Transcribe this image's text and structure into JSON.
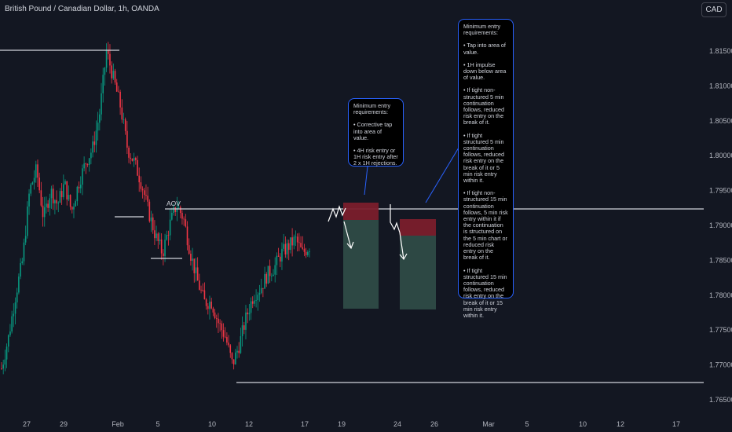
{
  "header": {
    "title": "British Pound / Canadian Dollar, 1h, OANDA",
    "currency_button": "CAD"
  },
  "chart_data": {
    "type": "candlestick",
    "title": "British Pound / Canadian Dollar, 1h, OANDA",
    "y_ticks": [
      "1.81500",
      "1.81000",
      "1.80500",
      "1.80000",
      "1.79500",
      "1.79000",
      "1.78500",
      "1.78000",
      "1.77500",
      "1.77000",
      "1.76500"
    ],
    "x_ticks": [
      "27",
      "29",
      "Feb",
      "5",
      "10",
      "12",
      "17",
      "19",
      "24",
      "26",
      "Mar",
      "5",
      "10",
      "12",
      "17"
    ],
    "annotation": "AOV",
    "price_path": [
      1.7695,
      1.774,
      1.78,
      1.785,
      1.795,
      1.798,
      1.791,
      1.795,
      1.793,
      1.796,
      1.792,
      1.796,
      1.799,
      1.801,
      1.806,
      1.815,
      1.811,
      1.807,
      1.801,
      1.799,
      1.796,
      1.792,
      1.7885,
      1.786,
      1.79,
      1.793,
      1.791,
      1.786,
      1.782,
      1.779,
      1.779,
      1.776,
      1.774,
      1.77,
      1.773,
      1.777,
      1.78,
      1.781,
      1.783,
      1.784,
      1.786,
      1.787,
      1.788,
      1.786,
      1.787
    ],
    "colors": {
      "up": "#089981",
      "down": "#f23645",
      "level": "#d1d4dc",
      "note_border": "#2962ff"
    }
  },
  "notes": {
    "first": {
      "heading": "Minimum entry requirements:",
      "bullets": [
        "• Corrective tap into area of value.",
        "• 4H risk entry or 1H risk entry after 2 x 1H rejections."
      ]
    },
    "second": {
      "heading": "Minimum entry requirements:",
      "bullets": [
        "• Tap into area of value.",
        "• 1H impulse down below area of value.",
        "• If tight non-structured 5 min continuation follows, reduced risk entry on the break of it.",
        "• If tight structured 5 min continuation follows, reduced risk entry on the break of it or 5 min risk entry within it.",
        "• If tight non-structured 15 min continuation follows, 5 min risk entry within it if the continuation is structured on the 5 min chart or reduced risk entry on the break of it.",
        "• If tight structured 15 min continuation follows, reduced risk entry on the break of it or 15 min risk entry within it."
      ]
    }
  }
}
